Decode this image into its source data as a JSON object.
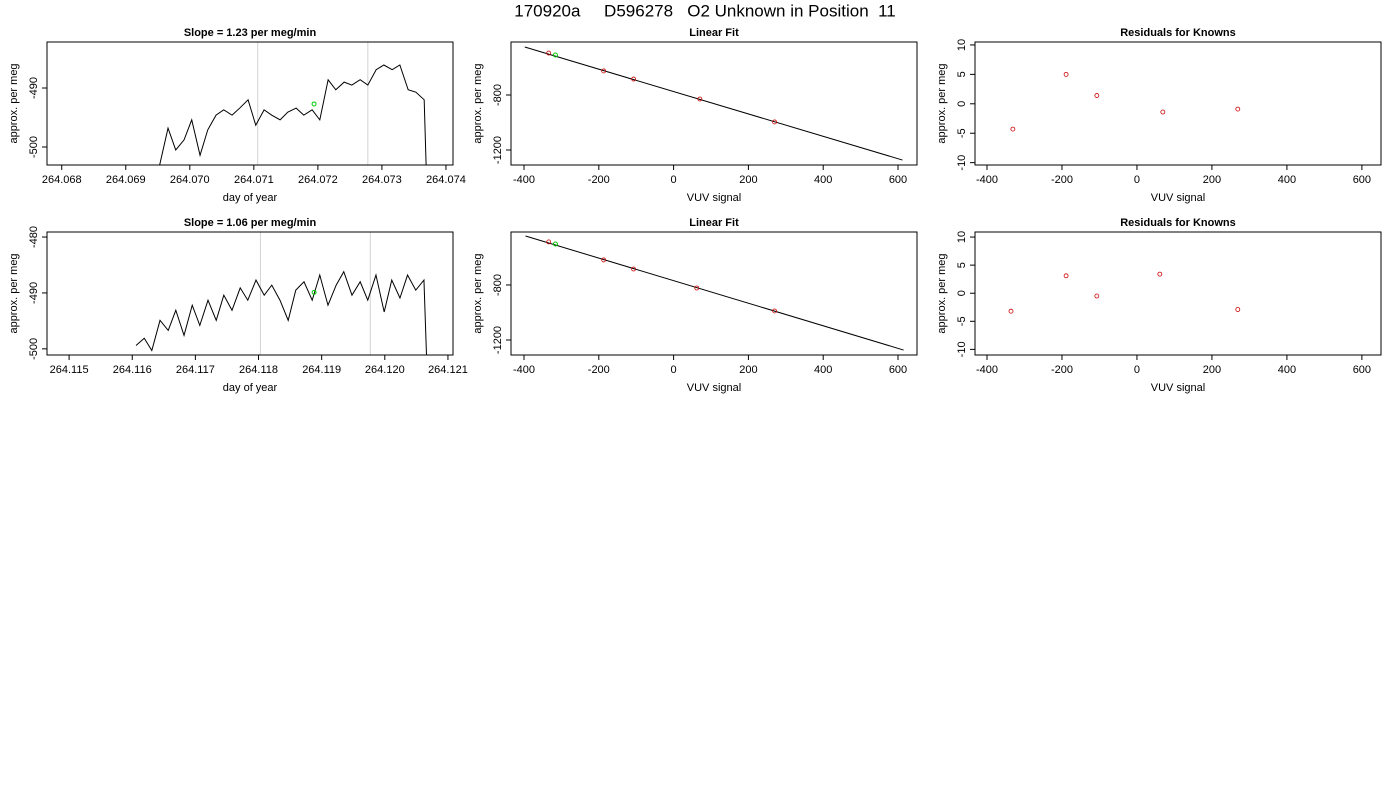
{
  "title": "170920a     D596278   O2 Unknown in Position  11",
  "chart_data": [
    {
      "type": "line",
      "title": "Slope =  1.23  per meg/min",
      "xlabel": "day of year",
      "ylabel": "approx. per meg",
      "color": "#000000",
      "xlim": [
        264.06777,
        264.07411
      ],
      "ylim": [
        -503.05,
        -482.2
      ],
      "xticks": [
        264.068,
        264.069,
        {
          "value": 264.07,
          "label": "264.070"
        },
        264.071,
        264.072,
        264.073,
        264.074
      ],
      "yticks": [
        -500,
        -490
      ],
      "x": [
        264.06953,
        264.06966,
        264.06978,
        264.06991,
        264.07003,
        264.07016,
        264.07028,
        264.07041,
        264.07053,
        264.07066,
        264.07078,
        264.07091,
        264.07103,
        264.07116,
        264.07128,
        264.07141,
        264.07153,
        264.07166,
        264.07178,
        264.07191,
        264.07203,
        264.07216,
        264.07228,
        264.07241,
        264.07253,
        264.07266,
        264.07278,
        264.07291,
        264.07303,
        264.07316,
        264.07328,
        264.07341,
        264.07353,
        264.07366,
        264.07369
      ],
      "values": [
        -503.0,
        -496.8,
        -500.5,
        -498.8,
        -495.4,
        -501.4,
        -497.1,
        -494.6,
        -493.7,
        -494.6,
        -493.4,
        -492.0,
        -496.3,
        -493.7,
        -494.6,
        -495.4,
        -494.1,
        -493.4,
        -494.6,
        -493.7,
        -495.4,
        -488.6,
        -490.3,
        -489.0,
        -489.5,
        -488.6,
        -489.5,
        -486.9,
        -486.1,
        -486.9,
        -486.1,
        -490.3,
        -490.7,
        -492.0,
        -503.0
      ],
      "vlines": [
        264.07106,
        264.07278
      ],
      "vline_color": "#d3d3d3",
      "highlight": {
        "x": 264.07194,
        "y": -492.7,
        "color": "#00cc00"
      }
    },
    {
      "type": "scatter",
      "title": "Linear Fit",
      "xlabel": "VUV signal",
      "ylabel": "approx. per meg",
      "color": "#cc0000",
      "xlim": [
        -434.8,
        650.8
      ],
      "ylim": [
        -1309,
        -414.5
      ],
      "xticks": [
        -400,
        -200,
        0,
        200,
        400,
        600
      ],
      "yticks": [
        -1200,
        -800
      ],
      "x": [
        -334,
        -187,
        -107,
        70,
        270
      ],
      "values": [
        -495,
        -625,
        -684,
        -829,
        -996
      ],
      "fit_line": {
        "x": [
          -398,
          612
        ],
        "y": [
          -451,
          -1273
        ]
      },
      "highlight": {
        "x": -316,
        "y": -509,
        "color": "#00cc00"
      }
    },
    {
      "type": "scatter",
      "title": "Residuals for Knowns",
      "xlabel": "VUV signal",
      "ylabel": "approx. per meg",
      "color": "#cc0000",
      "xlim": [
        -432,
        651
      ],
      "ylim": [
        -10.4,
        10.5
      ],
      "xticks": [
        -400,
        -200,
        0,
        200,
        400,
        600
      ],
      "yticks": [
        -10,
        -5,
        0,
        5,
        10
      ],
      "x": [
        -331,
        -189,
        -107,
        69,
        269
      ],
      "values": [
        -4.3,
        5.0,
        1.4,
        -1.4,
        -0.9
      ]
    },
    {
      "type": "line",
      "title": "Slope =  1.06  per meg/min",
      "xlabel": "day of year",
      "ylabel": "approx. per meg",
      "color": "#000000",
      "xlim": [
        264.11465,
        264.12108
      ],
      "ylim": [
        -501.1,
        -479.1
      ],
      "xticks": [
        264.115,
        264.116,
        264.117,
        264.118,
        264.119,
        {
          "value": 264.12,
          "label": "264.120"
        },
        264.121
      ],
      "yticks": [
        -500,
        -490,
        -480
      ],
      "x": [
        264.11606,
        264.11619,
        264.11631,
        264.11644,
        264.11657,
        264.11669,
        264.11682,
        264.11695,
        264.11707,
        264.1172,
        264.11733,
        264.11745,
        264.11758,
        264.11771,
        264.11783,
        264.11796,
        264.11809,
        264.11821,
        264.11834,
        264.11847,
        264.11859,
        264.11872,
        264.11885,
        264.11897,
        264.1191,
        264.11923,
        264.11935,
        264.11948,
        264.11961,
        264.11973,
        264.11986,
        264.11999,
        264.12011,
        264.12024,
        264.12036,
        264.12049,
        264.12062,
        264.12066
      ],
      "values": [
        -499.4,
        -498.1,
        -500.3,
        -494.9,
        -496.7,
        -493.1,
        -497.6,
        -492.2,
        -495.8,
        -491.3,
        -494.9,
        -490.4,
        -493.1,
        -489.1,
        -491.3,
        -487.7,
        -490.4,
        -488.6,
        -491.3,
        -494.9,
        -489.5,
        -488.0,
        -491.3,
        -486.8,
        -492.2,
        -488.6,
        -486.2,
        -490.4,
        -488.0,
        -491.3,
        -486.8,
        -493.4,
        -487.7,
        -490.9,
        -486.8,
        -489.5,
        -487.7,
        -501.0
      ],
      "vlines": [
        264.11803,
        264.11977
      ],
      "vline_color": "#d3d3d3",
      "highlight": {
        "x": 264.11888,
        "y": -489.9,
        "color": "#00cc00"
      }
    },
    {
      "type": "scatter",
      "title": "Linear Fit",
      "xlabel": "VUV signal",
      "ylabel": "approx. per meg",
      "color": "#cc0000",
      "xlim": [
        -434.8,
        650.8
      ],
      "ylim": [
        -1309,
        -415
      ],
      "xticks": [
        -400,
        -200,
        0,
        200,
        400,
        600
      ],
      "yticks": [
        -1200,
        -800
      ],
      "x": [
        -334,
        -187,
        -107,
        62,
        270
      ],
      "values": [
        -487,
        -618,
        -684,
        -822,
        -989
      ],
      "fit_line": {
        "x": [
          -396,
          615
        ],
        "y": [
          -444,
          -1273
        ]
      },
      "highlight": {
        "x": -316,
        "y": -502,
        "color": "#00cc00"
      }
    },
    {
      "type": "scatter",
      "title": "Residuals for Knowns",
      "xlabel": "VUV signal",
      "ylabel": "approx. per meg",
      "color": "#cc0000",
      "xlim": [
        -432,
        651
      ],
      "ylim": [
        -11.0,
        10.9
      ],
      "xticks": [
        -400,
        -200,
        0,
        200,
        400,
        600
      ],
      "yticks": [
        -10,
        -5,
        0,
        5,
        10
      ],
      "x": [
        -336,
        -189,
        -107,
        61,
        269
      ],
      "values": [
        -3.2,
        3.1,
        -0.5,
        3.4,
        -2.9
      ]
    }
  ]
}
